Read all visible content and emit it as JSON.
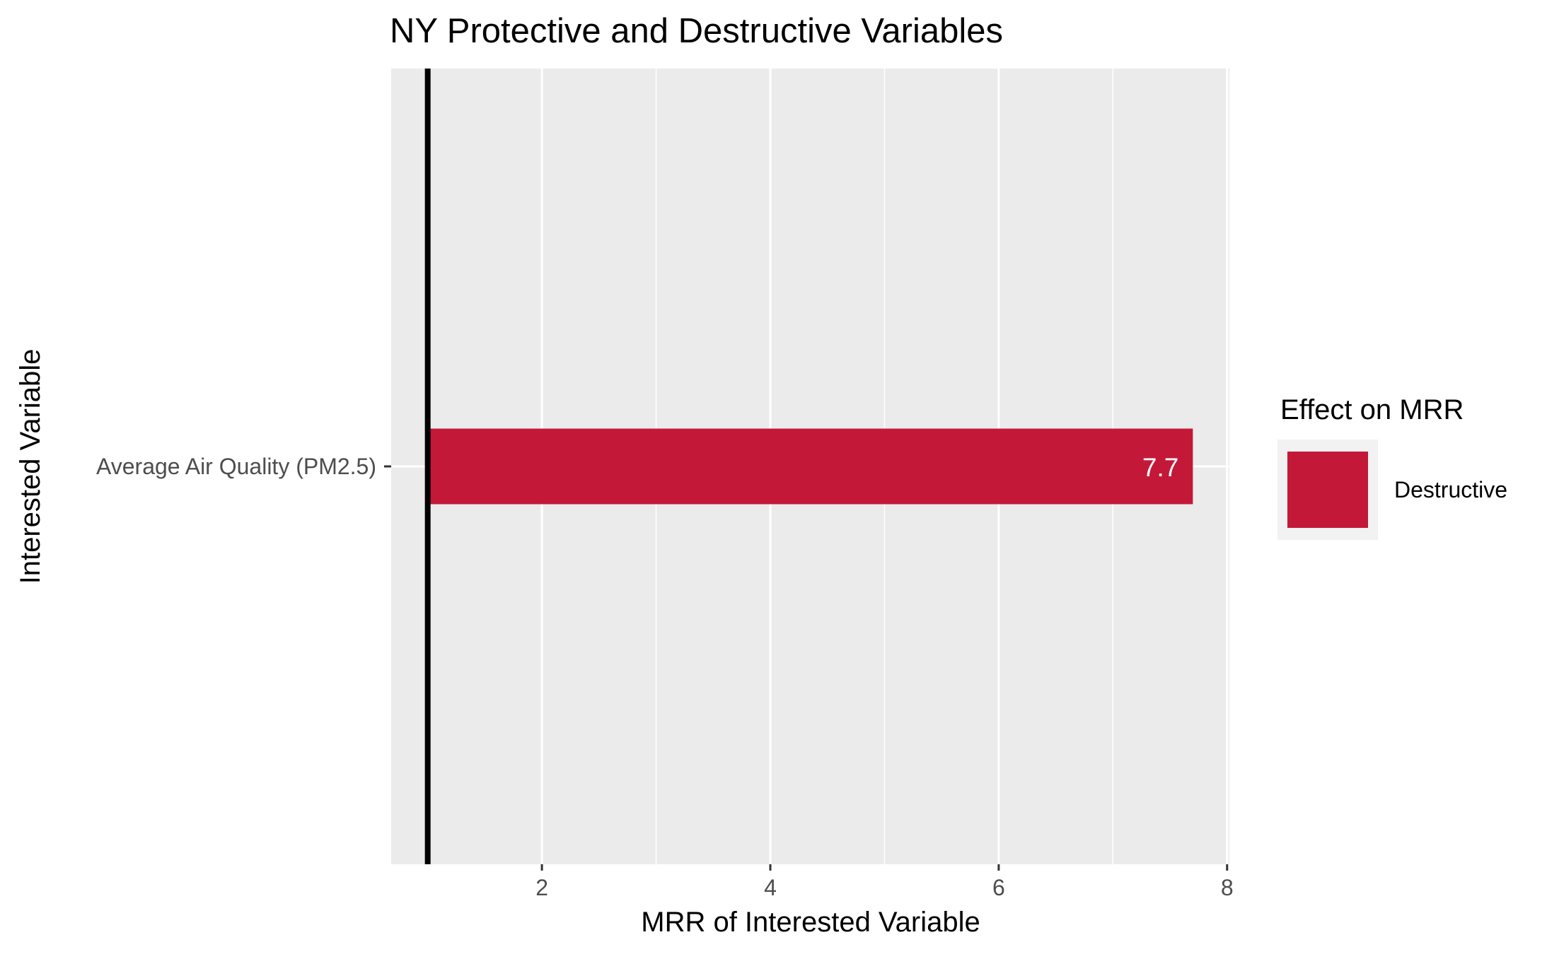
{
  "chart_data": {
    "type": "bar",
    "orientation": "horizontal",
    "title": "NY Protective and Destructive Variables",
    "xlabel": "MRR of Interested Variable",
    "ylabel": "Interested Variable",
    "categories": [
      "Average Air Quality (PM2.5)"
    ],
    "series": [
      {
        "name": "Destructive",
        "values": [
          7.7
        ],
        "labels": [
          "7.7"
        ],
        "color": "#C41839"
      }
    ],
    "bar_start": 1,
    "reference_line_x": 1,
    "xlim": [
      0.68,
      8.02
    ],
    "x_ticks": [
      2,
      4,
      6,
      8
    ],
    "x_tick_labels": [
      "2",
      "4",
      "6",
      "8"
    ],
    "grid": true,
    "legend": {
      "title": "Effect on MRR",
      "position": "right",
      "entries": [
        {
          "label": "Destructive",
          "color": "#C41839"
        }
      ]
    },
    "colors": {
      "panel_background": "#EBEBEB",
      "grid_line": "#FFFFFF",
      "reference_line": "#000000",
      "axis_text": "#4D4D4D",
      "title_text": "#000000",
      "bar_label_text": "#FFFFFF",
      "legend_key_background": "#F2F2F2"
    }
  }
}
